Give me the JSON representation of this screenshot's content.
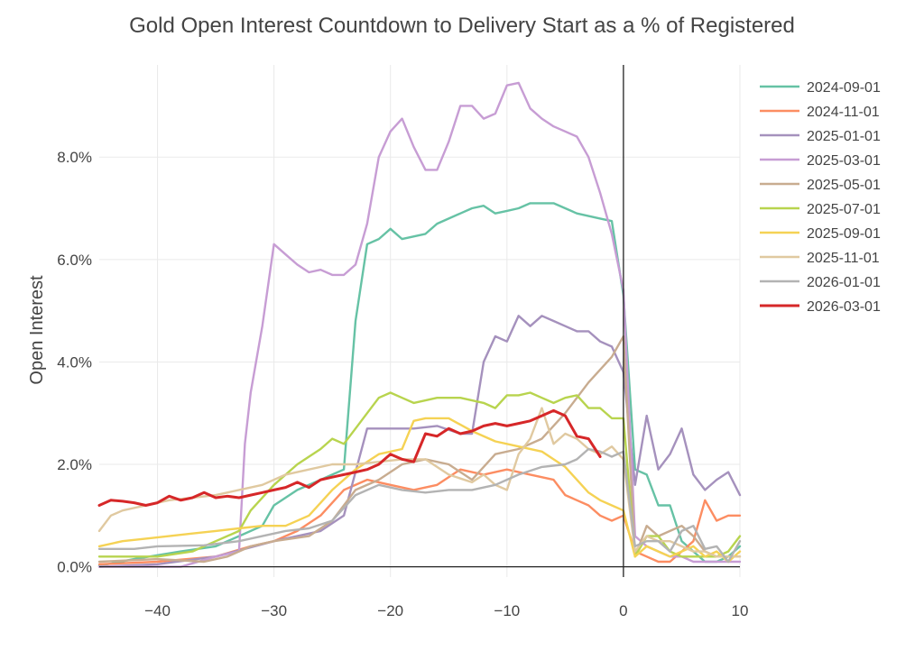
{
  "chart_data": {
    "type": "line",
    "title": "Gold Open Interest Countdown to Delivery Start as a % of Registered",
    "xlabel": "",
    "ylabel": "Open Interest",
    "xlim": [
      -45,
      10
    ],
    "ylim": [
      -0.2,
      9.8
    ],
    "x_ticks": [
      -40,
      -30,
      -20,
      -10,
      0,
      10
    ],
    "x_tick_labels": [
      "−40",
      "−30",
      "−20",
      "−10",
      "0",
      "10"
    ],
    "y_ticks": [
      0,
      2,
      4,
      6,
      8
    ],
    "y_tick_labels": [
      "0.0%",
      "2.0%",
      "4.0%",
      "6.0%",
      "8.0%"
    ],
    "series": [
      {
        "name": "2024-09-01",
        "color": "#66c2a5",
        "x": [
          -45,
          -42,
          -38,
          -35,
          -33,
          -31,
          -30,
          -28,
          -26,
          -25,
          -24,
          -23,
          -22,
          -21,
          -20,
          -19,
          -17,
          -16,
          -15,
          -14,
          -13,
          -12,
          -11,
          -10,
          -9,
          -8,
          -7,
          -6,
          -5,
          -4,
          -3,
          -2,
          -1,
          0,
          1,
          2,
          3,
          4,
          5,
          6,
          7,
          8,
          9,
          10
        ],
        "y": [
          0.02,
          0.15,
          0.3,
          0.4,
          0.6,
          0.8,
          1.2,
          1.5,
          1.7,
          1.8,
          1.9,
          4.8,
          6.3,
          6.4,
          6.6,
          6.4,
          6.5,
          6.7,
          6.8,
          6.9,
          7.0,
          7.05,
          6.9,
          6.95,
          7.0,
          7.1,
          7.1,
          7.1,
          7.0,
          6.9,
          6.85,
          6.8,
          6.75,
          5.3,
          1.9,
          1.8,
          1.2,
          1.2,
          0.5,
          0.3,
          0.1,
          0.1,
          0.2,
          0.4
        ]
      },
      {
        "name": "2024-11-01",
        "color": "#fc8d62",
        "x": [
          -45,
          -40,
          -35,
          -32,
          -30,
          -28,
          -26,
          -24,
          -22,
          -20,
          -18,
          -16,
          -14,
          -12,
          -10,
          -8,
          -6,
          -5,
          -4,
          -3,
          -2,
          -1,
          0,
          1,
          2,
          3,
          4,
          5,
          6,
          7,
          8,
          9,
          10
        ],
        "y": [
          0.05,
          0.1,
          0.2,
          0.4,
          0.5,
          0.7,
          1.0,
          1.5,
          1.7,
          1.6,
          1.5,
          1.6,
          1.9,
          1.8,
          1.9,
          1.8,
          1.7,
          1.4,
          1.3,
          1.2,
          1.0,
          0.9,
          1.0,
          0.3,
          0.2,
          0.1,
          0.1,
          0.3,
          0.5,
          1.3,
          0.9,
          1.0,
          1.0
        ]
      },
      {
        "name": "2025-01-01",
        "color": "#a591bd",
        "x": [
          -45,
          -40,
          -35,
          -30,
          -28,
          -26,
          -24,
          -22,
          -20,
          -18,
          -16,
          -14,
          -13,
          -12,
          -11,
          -10,
          -9,
          -8,
          -7,
          -6,
          -5,
          -4,
          -3,
          -2,
          -1,
          0,
          1,
          2,
          3,
          4,
          5,
          6,
          7,
          8,
          9,
          10
        ],
        "y": [
          0.0,
          0.05,
          0.2,
          0.5,
          0.6,
          0.7,
          1.0,
          2.7,
          2.7,
          2.7,
          2.75,
          2.6,
          2.6,
          4.0,
          4.5,
          4.4,
          4.9,
          4.7,
          4.9,
          4.8,
          4.7,
          4.6,
          4.6,
          4.4,
          4.3,
          3.8,
          1.6,
          2.95,
          1.9,
          2.2,
          2.7,
          1.8,
          1.5,
          1.7,
          1.85,
          1.4
        ]
      },
      {
        "name": "2025-03-01",
        "color": "#c79dd4",
        "x": [
          -45,
          -38,
          -35,
          -33,
          -32.5,
          -32,
          -31,
          -30,
          -29,
          -28,
          -27,
          -26,
          -25,
          -24,
          -23,
          -22,
          -21,
          -20,
          -19,
          -18,
          -17,
          -16,
          -15,
          -14,
          -13,
          -12,
          -11,
          -10,
          -9,
          -8,
          -7,
          -6,
          -5,
          -4,
          -3,
          -2,
          -1,
          0,
          1,
          2,
          3,
          4,
          5,
          6,
          7,
          8,
          9,
          10
        ],
        "y": [
          0.0,
          0.0,
          0.2,
          0.3,
          2.4,
          3.4,
          4.7,
          6.3,
          6.1,
          5.9,
          5.75,
          5.8,
          5.7,
          5.7,
          5.9,
          6.7,
          8.0,
          8.5,
          8.75,
          8.2,
          7.75,
          7.75,
          8.3,
          9.0,
          9.0,
          8.75,
          8.85,
          9.4,
          9.45,
          8.95,
          8.75,
          8.6,
          8.5,
          8.4,
          8.0,
          7.3,
          6.5,
          5.4,
          0.6,
          0.4,
          0.3,
          0.2,
          0.2,
          0.1,
          0.1,
          0.1,
          0.1,
          0.1
        ]
      },
      {
        "name": "2025-05-01",
        "color": "#c8ac90",
        "x": [
          -45,
          -40,
          -36,
          -34,
          -32,
          -30,
          -27,
          -25,
          -23,
          -21,
          -19,
          -17,
          -15,
          -13,
          -11,
          -9,
          -7,
          -5,
          -3,
          -1,
          0,
          1,
          2,
          3,
          4,
          5,
          6,
          7,
          8,
          9,
          10
        ],
        "y": [
          0.1,
          0.15,
          0.1,
          0.2,
          0.4,
          0.5,
          0.6,
          0.9,
          1.5,
          1.7,
          2.0,
          2.1,
          2.0,
          1.7,
          2.2,
          2.3,
          2.5,
          3.0,
          3.6,
          4.1,
          4.5,
          0.2,
          0.8,
          0.6,
          0.7,
          0.8,
          0.6,
          0.3,
          0.2,
          0.2,
          0.2
        ]
      },
      {
        "name": "2025-07-01",
        "color": "#b8d44e",
        "x": [
          -45,
          -40,
          -37,
          -35,
          -33,
          -32,
          -30,
          -28,
          -26,
          -25,
          -24,
          -23,
          -22,
          -21,
          -20,
          -19,
          -18,
          -16,
          -14,
          -12,
          -11,
          -10,
          -9,
          -8,
          -7,
          -6,
          -5,
          -4,
          -3,
          -2,
          -1,
          0,
          1,
          2,
          3,
          4,
          5,
          6,
          7,
          8,
          9,
          10
        ],
        "y": [
          0.2,
          0.2,
          0.3,
          0.5,
          0.7,
          1.1,
          1.6,
          2.0,
          2.3,
          2.5,
          2.4,
          2.7,
          3.0,
          3.3,
          3.4,
          3.3,
          3.2,
          3.3,
          3.3,
          3.2,
          3.1,
          3.35,
          3.35,
          3.4,
          3.3,
          3.2,
          3.3,
          3.35,
          3.1,
          3.1,
          2.9,
          2.9,
          0.2,
          0.6,
          0.6,
          0.3,
          0.2,
          0.2,
          0.2,
          0.2,
          0.3,
          0.6
        ]
      },
      {
        "name": "2025-09-01",
        "color": "#f5d254",
        "x": [
          -45,
          -43,
          -41,
          -39,
          -37,
          -35,
          -33,
          -31,
          -29,
          -27,
          -25,
          -23,
          -21,
          -19,
          -18,
          -17,
          -15,
          -13,
          -11,
          -9,
          -7,
          -5,
          -4,
          -3,
          -2,
          -1,
          0,
          1,
          2,
          3,
          4,
          5,
          6,
          7,
          8,
          9,
          10
        ],
        "y": [
          0.4,
          0.5,
          0.55,
          0.6,
          0.65,
          0.7,
          0.75,
          0.8,
          0.8,
          1.0,
          1.5,
          1.9,
          2.2,
          2.3,
          2.85,
          2.9,
          2.9,
          2.65,
          2.45,
          2.35,
          2.25,
          1.95,
          1.7,
          1.45,
          1.3,
          1.2,
          1.1,
          0.2,
          0.4,
          0.3,
          0.2,
          0.3,
          0.4,
          0.2,
          0.3,
          0.1,
          0.3
        ]
      },
      {
        "name": "2025-11-01",
        "color": "#e0c9a0",
        "x": [
          -45,
          -44,
          -43,
          -41,
          -39,
          -37,
          -35,
          -33,
          -31,
          -29,
          -27,
          -25,
          -23,
          -21,
          -19,
          -17,
          -15,
          -13,
          -12,
          -11,
          -10,
          -9,
          -8,
          -7,
          -6,
          -5,
          -4,
          -3,
          -2,
          -1,
          0,
          1,
          2,
          3,
          4,
          5,
          6,
          7,
          8,
          9,
          10
        ],
        "y": [
          0.7,
          1.0,
          1.1,
          1.2,
          1.3,
          1.35,
          1.4,
          1.5,
          1.6,
          1.8,
          1.9,
          2.0,
          2.0,
          2.05,
          2.1,
          2.1,
          1.8,
          1.65,
          1.8,
          1.6,
          1.5,
          2.2,
          2.5,
          3.1,
          2.4,
          2.6,
          2.5,
          2.3,
          2.2,
          2.35,
          2.1,
          0.3,
          0.6,
          0.5,
          0.5,
          0.4,
          0.3,
          0.3,
          0.2,
          0.2,
          0.2
        ]
      },
      {
        "name": "2026-01-01",
        "color": "#b3b3b3",
        "x": [
          -45,
          -42,
          -40,
          -36,
          -33,
          -31,
          -29,
          -27,
          -25,
          -23,
          -21,
          -19,
          -17,
          -15,
          -13,
          -11,
          -9,
          -7,
          -5,
          -4,
          -3,
          -2,
          -1,
          0,
          1,
          2,
          3,
          4,
          5,
          6,
          7,
          8,
          9,
          10
        ],
        "y": [
          0.35,
          0.35,
          0.4,
          0.42,
          0.5,
          0.6,
          0.7,
          0.75,
          0.9,
          1.4,
          1.6,
          1.5,
          1.45,
          1.5,
          1.5,
          1.6,
          1.8,
          1.95,
          2.0,
          2.1,
          2.3,
          2.25,
          2.15,
          2.25,
          0.4,
          0.5,
          0.5,
          0.3,
          0.7,
          0.8,
          0.35,
          0.4,
          0.1,
          0.5
        ]
      },
      {
        "name": "2026-03-01",
        "color": "#d62728",
        "x": [
          -45,
          -44,
          -43,
          -42,
          -41,
          -40,
          -39,
          -38,
          -37,
          -36,
          -35,
          -34,
          -33,
          -32,
          -31,
          -30,
          -29,
          -28,
          -27,
          -26,
          -25,
          -24,
          -23,
          -22,
          -21,
          -20,
          -19,
          -18,
          -17,
          -16,
          -15,
          -14,
          -13,
          -12,
          -11,
          -10,
          -9,
          -8,
          -7,
          -6,
          -5,
          -4,
          -3,
          -2
        ],
        "y": [
          1.2,
          1.3,
          1.28,
          1.25,
          1.2,
          1.25,
          1.38,
          1.3,
          1.35,
          1.45,
          1.35,
          1.38,
          1.35,
          1.4,
          1.45,
          1.5,
          1.55,
          1.65,
          1.55,
          1.7,
          1.75,
          1.8,
          1.85,
          1.9,
          2.0,
          2.2,
          2.1,
          2.05,
          2.6,
          2.55,
          2.7,
          2.6,
          2.65,
          2.75,
          2.8,
          2.75,
          2.8,
          2.85,
          2.95,
          3.05,
          2.95,
          2.55,
          2.5,
          2.15
        ]
      }
    ]
  }
}
